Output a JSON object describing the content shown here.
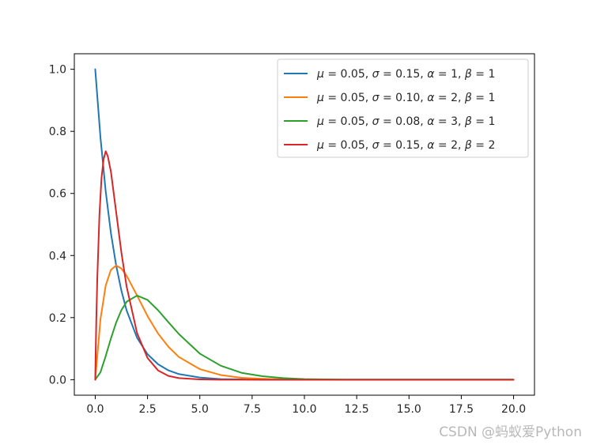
{
  "chart_data": {
    "type": "line",
    "title": "",
    "xlabel": "",
    "ylabel": "",
    "xlim": [
      -1.0,
      21.0
    ],
    "ylim": [
      -0.05,
      1.05
    ],
    "grid": false,
    "legend_position": "top-right",
    "xticks": [
      0.0,
      2.5,
      5.0,
      7.5,
      10.0,
      12.5,
      15.0,
      17.5,
      20.0
    ],
    "xtick_labels": [
      "0.0",
      "2.5",
      "5.0",
      "7.5",
      "10.0",
      "12.5",
      "15.0",
      "17.5",
      "20.0"
    ],
    "yticks": [
      0.0,
      0.2,
      0.4,
      0.6,
      0.8,
      1.0
    ],
    "ytick_labels": [
      "0.0",
      "0.2",
      "0.4",
      "0.6",
      "0.8",
      "1.0"
    ],
    "series": [
      {
        "name": "μ = 0.05, σ = 0.15, α = 1, β = 1",
        "label_parts": {
          "mu": "0.05",
          "sigma": "0.15",
          "alpha": "1",
          "beta": "1"
        },
        "color": "#1f77b4",
        "x": [
          0,
          0.25,
          0.5,
          0.75,
          1.0,
          1.25,
          1.5,
          2.0,
          2.5,
          3.0,
          3.5,
          4.0,
          5.0,
          6.0,
          7.0,
          8.0,
          9.0,
          10.0,
          12.0,
          15.0,
          20.0
        ],
        "y": [
          1.0,
          0.78,
          0.607,
          0.472,
          0.368,
          0.287,
          0.223,
          0.135,
          0.082,
          0.05,
          0.03,
          0.018,
          0.007,
          0.002,
          0.001,
          0.0,
          0.0,
          0.0,
          0.0,
          0.0,
          0.0
        ]
      },
      {
        "name": "μ = 0.05, σ = 0.10, α = 2, β = 1",
        "label_parts": {
          "mu": "0.05",
          "sigma": "0.10",
          "alpha": "2",
          "beta": "1"
        },
        "color": "#ff7f0e",
        "x": [
          0,
          0.25,
          0.5,
          0.75,
          1.0,
          1.25,
          1.5,
          2.0,
          2.5,
          3.0,
          3.5,
          4.0,
          5.0,
          6.0,
          7.0,
          8.0,
          9.0,
          10.0,
          12.0,
          15.0,
          20.0
        ],
        "y": [
          0.0,
          0.195,
          0.303,
          0.354,
          0.368,
          0.358,
          0.335,
          0.271,
          0.205,
          0.149,
          0.106,
          0.073,
          0.034,
          0.015,
          0.006,
          0.003,
          0.001,
          0.0,
          0.0,
          0.0,
          0.0
        ]
      },
      {
        "name": "μ = 0.05, σ = 0.08, α = 3, β = 1",
        "label_parts": {
          "mu": "0.05",
          "sigma": "0.08",
          "alpha": "3",
          "beta": "1"
        },
        "color": "#2ca02c",
        "x": [
          0,
          0.25,
          0.5,
          0.75,
          1.0,
          1.25,
          1.5,
          2.0,
          2.5,
          3.0,
          3.5,
          4.0,
          5.0,
          6.0,
          7.0,
          8.0,
          9.0,
          10.0,
          12.0,
          15.0,
          20.0
        ],
        "y": [
          0.0,
          0.024,
          0.076,
          0.133,
          0.184,
          0.224,
          0.251,
          0.271,
          0.257,
          0.224,
          0.185,
          0.147,
          0.084,
          0.045,
          0.022,
          0.011,
          0.005,
          0.002,
          0.0,
          0.0,
          0.0
        ]
      },
      {
        "name": "μ = 0.05, σ = 0.15, α = 2, β = 2",
        "label_parts": {
          "mu": "0.05",
          "sigma": "0.15",
          "alpha": "2",
          "beta": "2"
        },
        "color": "#d62728",
        "x": [
          0,
          0.02,
          0.05,
          0.1,
          0.2,
          0.3,
          0.4,
          0.5,
          0.6,
          0.75,
          1.0,
          1.25,
          1.5,
          2.0,
          2.5,
          3.0,
          3.5,
          4.0,
          5.0,
          6.0,
          8.0,
          10.0,
          15.0,
          20.0
        ],
        "y": [
          0.0,
          0.08,
          0.19,
          0.33,
          0.53,
          0.65,
          0.71,
          0.736,
          0.72,
          0.67,
          0.54,
          0.41,
          0.3,
          0.15,
          0.07,
          0.03,
          0.012,
          0.005,
          0.001,
          0.0,
          0.0,
          0.0,
          0.0,
          0.0
        ]
      }
    ]
  },
  "watermark": "CSDN @蚂蚁爱Python"
}
